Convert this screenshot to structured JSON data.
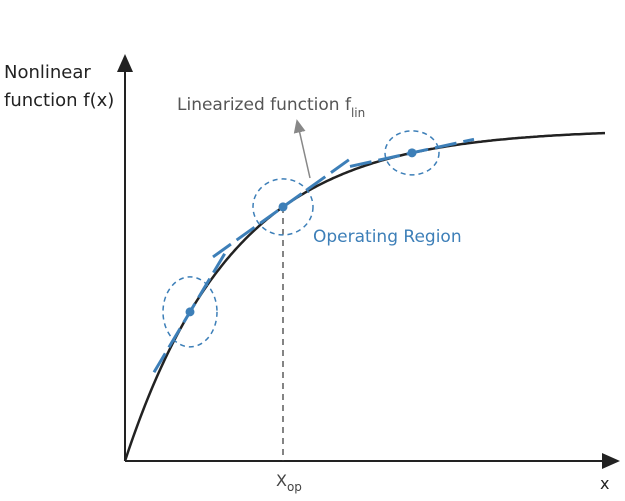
{
  "labels": {
    "y_axis_line1": "Nonlinear",
    "y_axis_line2": "function f(x)",
    "linearized": "Linearized function f",
    "linearized_sub": "lin",
    "operating_region": "Operating Region",
    "x_op": "X",
    "x_op_sub": "op",
    "x_axis": "x"
  }
}
